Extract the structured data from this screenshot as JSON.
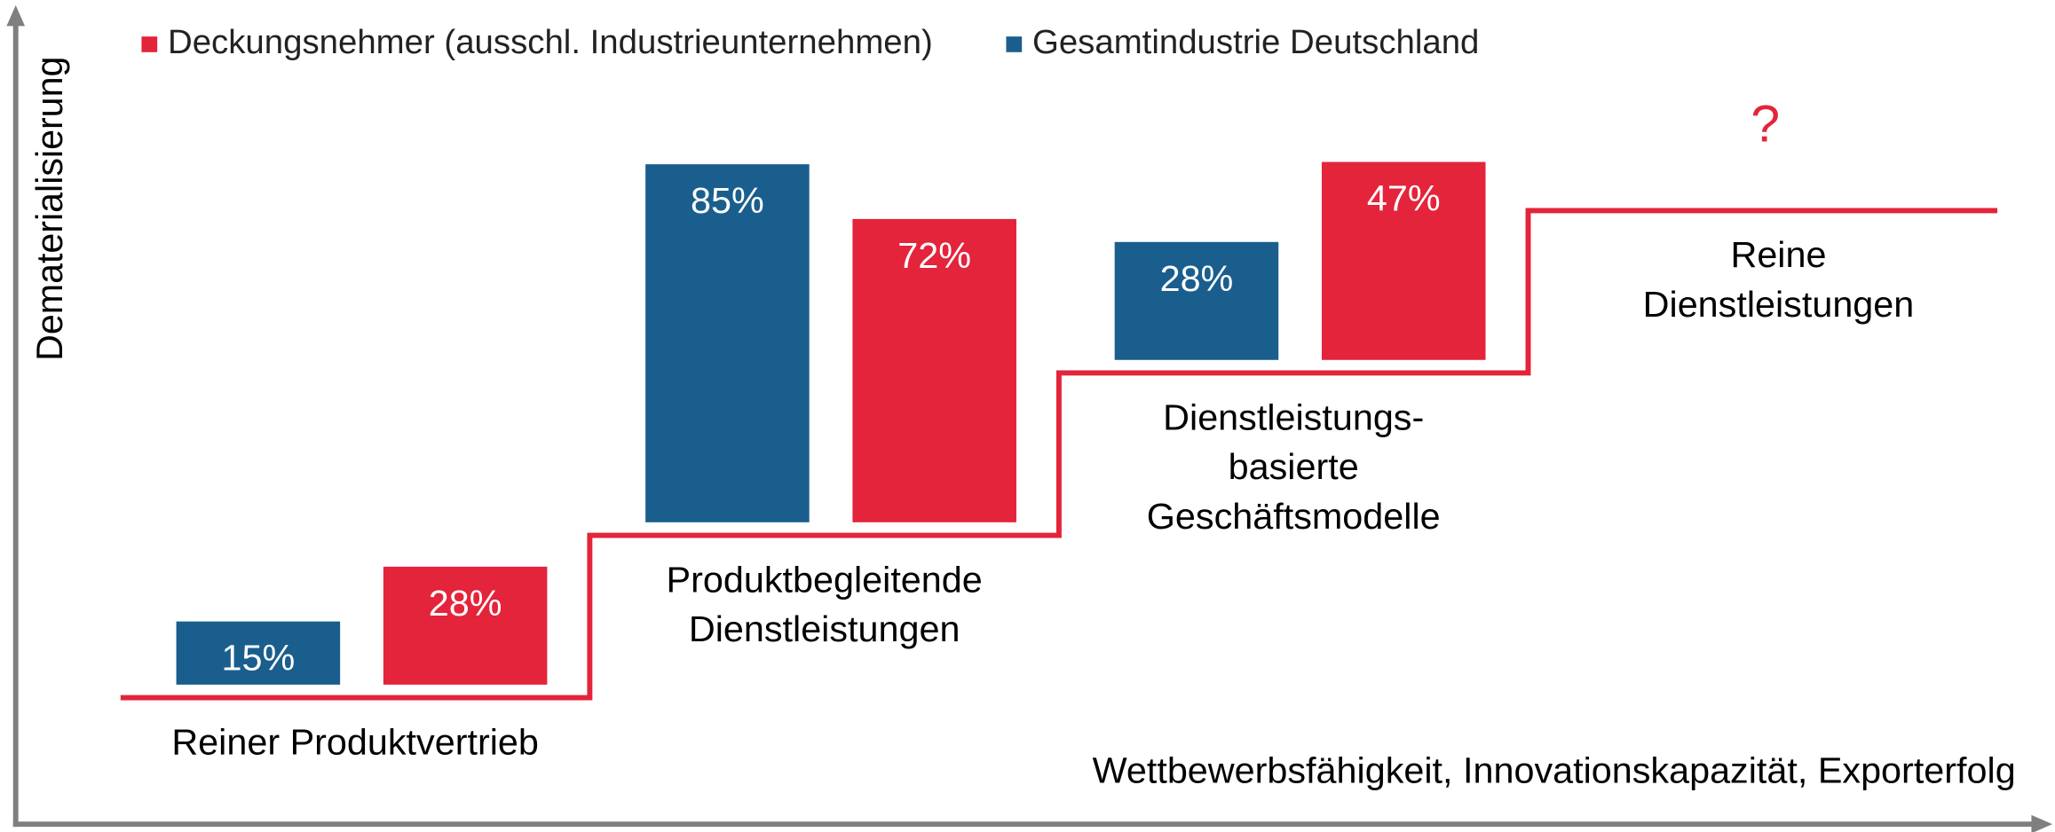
{
  "chart_data": {
    "type": "step-bar",
    "y_label": "Dematerialisierung",
    "x_label": "Wettbewerbsfähigkeit, Innovationskapazität, Exporterfolg",
    "categories": [
      [
        "Reiner Produktvertrieb"
      ],
      [
        "Produktbegleitende",
        "Dienstleistungen"
      ],
      [
        "Dienstleistungs-",
        "basierte",
        "Geschäftsmodelle"
      ],
      [
        "Reine",
        "Dienstleistungen"
      ]
    ],
    "series": [
      {
        "name": "Deckungsnehmer (ausschl. Industrieunternehmen)",
        "color": "#e3243b",
        "values": [
          28,
          72,
          47,
          null
        ],
        "value_labels": [
          "28%",
          "72%",
          "47%",
          null
        ]
      },
      {
        "name": "Gesamtindustrie Deutschland",
        "color": "#1a5e8e",
        "values": [
          15,
          85,
          28,
          null
        ],
        "value_labels": [
          "15%",
          "85%",
          "28%",
          null
        ]
      }
    ],
    "annotation": "?",
    "step_color": "#e3243b",
    "axis_color": "#7f7f7f"
  }
}
